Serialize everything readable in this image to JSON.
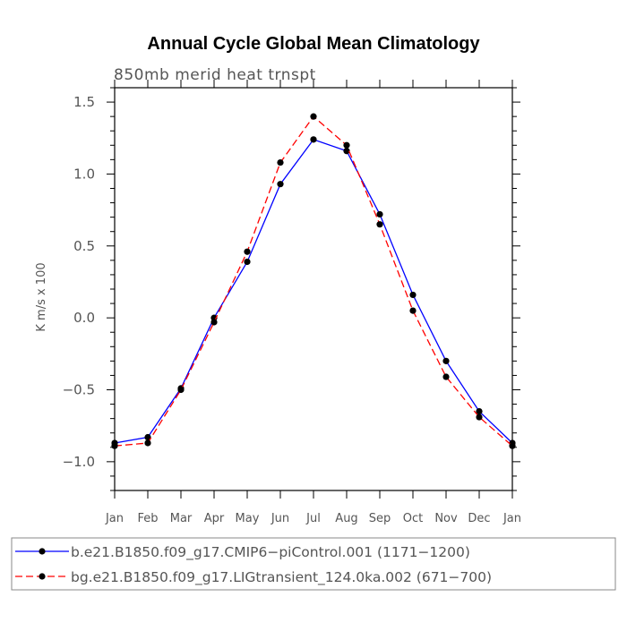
{
  "chart_data": {
    "type": "line",
    "title": "Annual Cycle Global Mean Climatology",
    "subtitle": "850mb merid heat trnspt",
    "ylabel": "K m/s x 100",
    "xlabel": "",
    "categories": [
      "Jan",
      "Feb",
      "Mar",
      "Apr",
      "May",
      "Jun",
      "Jul",
      "Aug",
      "Sep",
      "Oct",
      "Nov",
      "Dec",
      "Jan"
    ],
    "ylim": [
      -1.2,
      1.6
    ],
    "y_ticks": [
      -1.0,
      -0.5,
      0.0,
      0.5,
      1.0,
      1.5
    ],
    "y_tick_labels": [
      "−1.0",
      "−0.5",
      "0.0",
      "0.5",
      "1.0",
      "1.5"
    ],
    "grid": false,
    "legend_position": "bottom",
    "series": [
      {
        "name": "b.e21.B1850.f09_g17.CMIP6-piControl.001 (1171-1200)",
        "label": "b.e21.B1850.f09_g17.CMIP6−piControl.001 (1171−1200)",
        "color": "#0000ff",
        "dash": "solid",
        "values": [
          -0.87,
          -0.83,
          -0.49,
          0.0,
          0.39,
          0.93,
          1.24,
          1.16,
          0.72,
          0.16,
          -0.3,
          -0.65,
          -0.87
        ]
      },
      {
        "name": "bg.e21.B1850.f09_g17.LIGtransient_124.0ka.002 (671-700)",
        "label": "bg.e21.B1850.f09_g17.LIGtransient_124.0ka.002 (671−700)",
        "color": "#ff0000",
        "dash": "dashed",
        "values": [
          -0.89,
          -0.87,
          -0.5,
          -0.03,
          0.46,
          1.08,
          1.4,
          1.2,
          0.65,
          0.05,
          -0.41,
          -0.69,
          -0.89
        ]
      }
    ]
  }
}
